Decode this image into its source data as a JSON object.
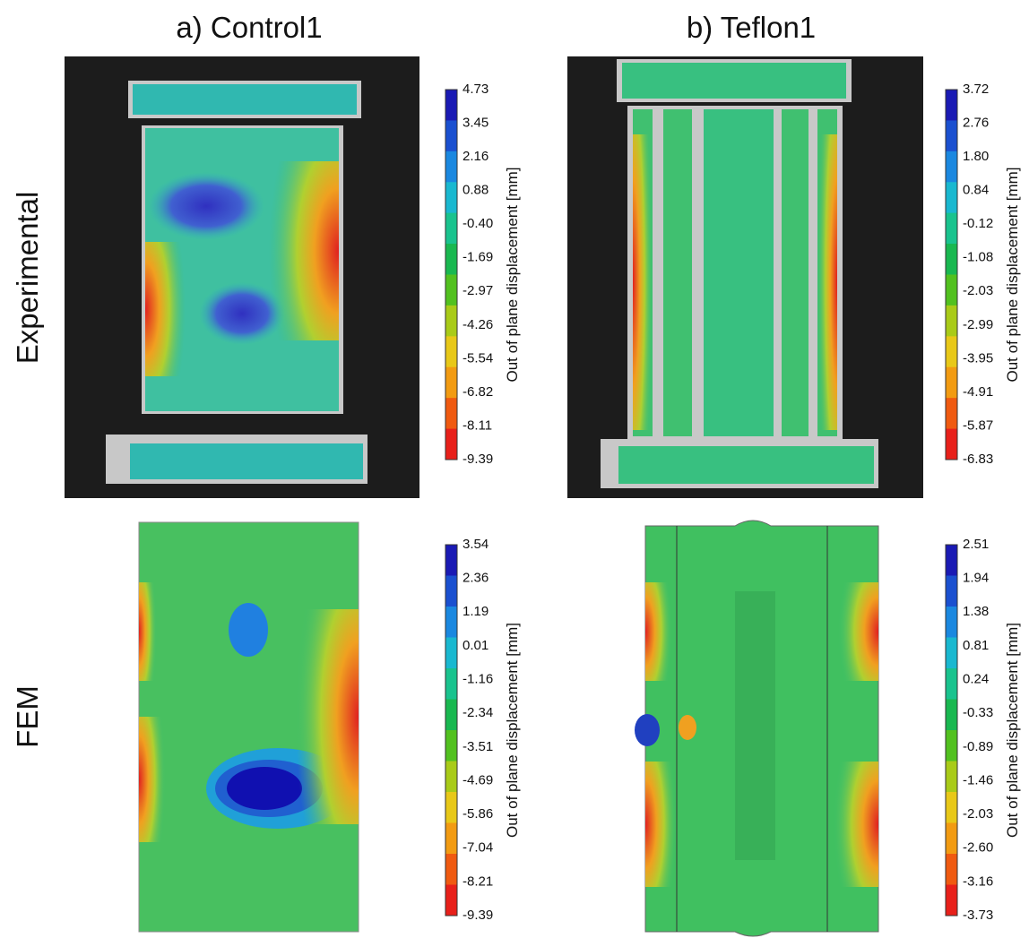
{
  "columns": [
    {
      "title": "a) Control1"
    },
    {
      "title": "b) Teflon1"
    }
  ],
  "rows": [
    {
      "label": "Experimental"
    },
    {
      "label": "FEM"
    }
  ],
  "colorbars": [
    {
      "label": "Out of plane displacement [mm]",
      "ticks": [
        "4.73",
        "3.45",
        "2.16",
        "0.88",
        "-0.40",
        "-1.69",
        "-2.97",
        "-4.26",
        "-5.54",
        "-6.82",
        "-8.11",
        "-9.39"
      ]
    },
    {
      "label": "Out of plane displacement [mm]",
      "ticks": [
        "3.72",
        "2.76",
        "1.80",
        "0.84",
        "-0.12",
        "-1.08",
        "-2.03",
        "-2.99",
        "-3.95",
        "-4.91",
        "-5.87",
        "-6.83"
      ]
    },
    {
      "label": "Out of plane displacement [mm]",
      "ticks": [
        "3.54",
        "2.36",
        "1.19",
        "0.01",
        "-1.16",
        "-2.34",
        "-3.51",
        "-4.69",
        "-5.86",
        "-7.04",
        "-8.21",
        "-9.39"
      ]
    },
    {
      "label": "Out of plane displacement [mm]",
      "ticks": [
        "2.51",
        "1.94",
        "1.38",
        "0.81",
        "0.24",
        "-0.33",
        "-0.89",
        "-1.46",
        "-2.03",
        "-2.60",
        "-3.16",
        "-3.73"
      ]
    }
  ]
}
